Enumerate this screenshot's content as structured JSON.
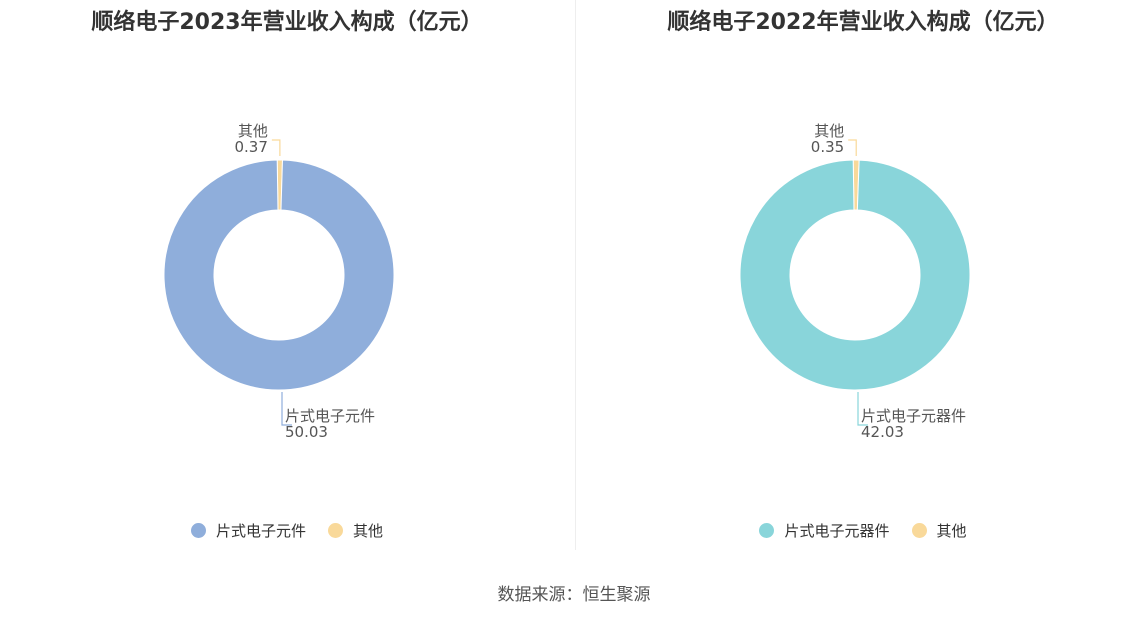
{
  "chart_data": [
    {
      "type": "pie",
      "title": "顺络电子2023年营业收入构成（亿元）",
      "series": [
        {
          "name": "其他",
          "value": 0.37,
          "color": "#F9D99A"
        },
        {
          "name": "片式电子元件",
          "value": 50.03,
          "color": "#8FAEDB"
        }
      ],
      "legend_order": [
        "片式电子元件",
        "其他"
      ],
      "legend_placement": "bottom"
    },
    {
      "type": "pie",
      "title": "顺络电子2022年营业收入构成（亿元）",
      "series": [
        {
          "name": "其他",
          "value": 0.35,
          "color": "#F9D99A"
        },
        {
          "name": "片式电子元器件",
          "value": 42.03,
          "color": "#89D5DA"
        }
      ],
      "legend_order": [
        "片式电子元器件",
        "其他"
      ],
      "legend_placement": "bottom"
    }
  ],
  "source": "数据来源：恒生聚源"
}
